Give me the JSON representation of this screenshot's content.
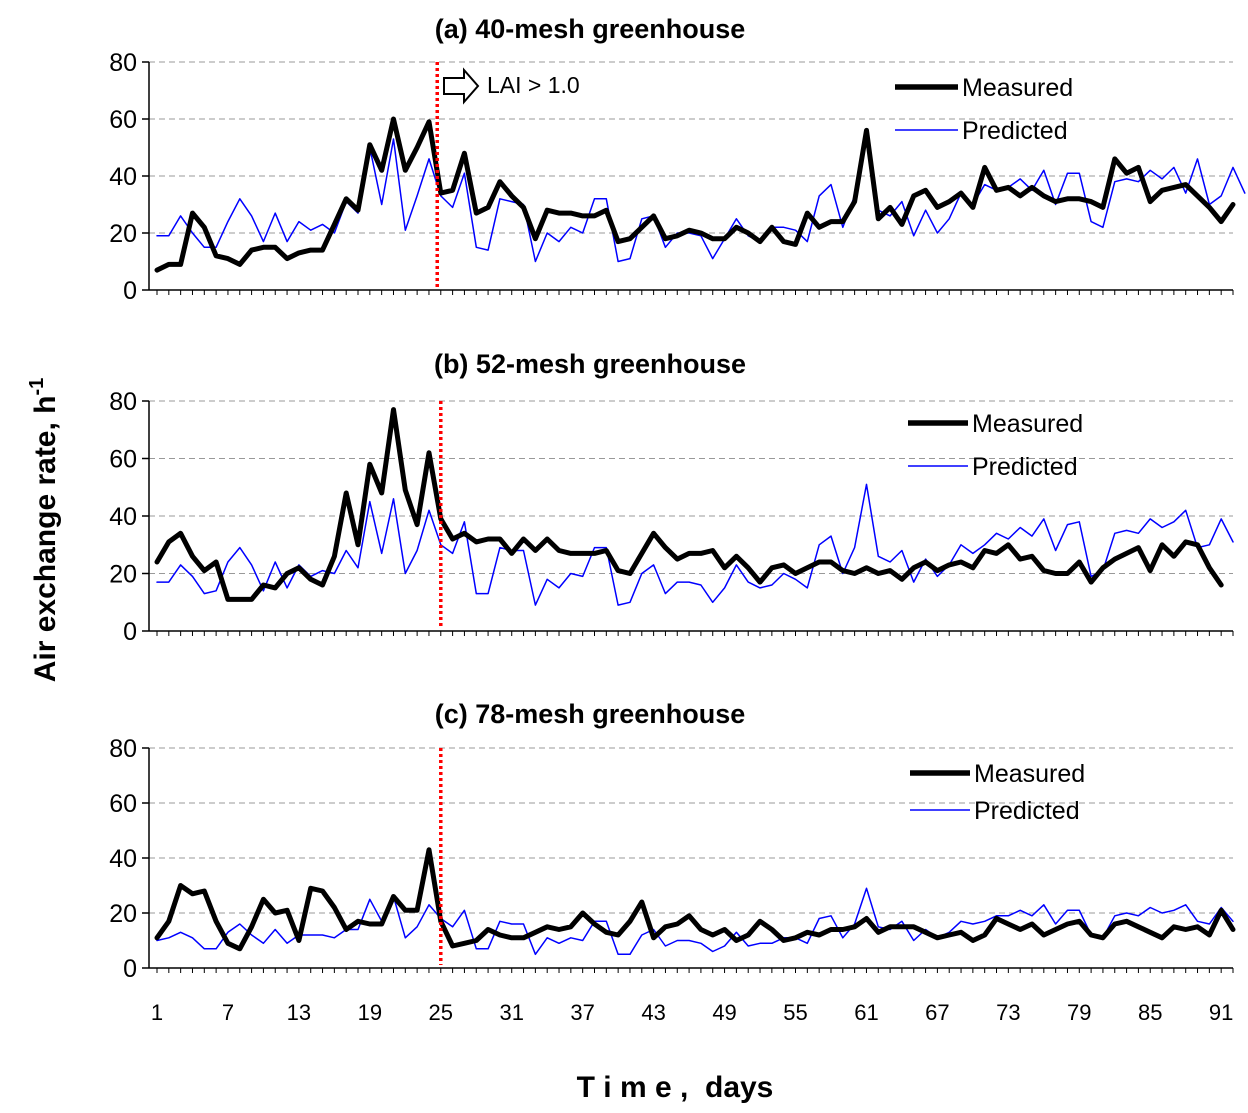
{
  "chart_data": {
    "type": "line",
    "ylabel": "Air exchange rate, h",
    "ylabel_sup": "-1",
    "xlabel": "T i m e ,  days",
    "x_tick_labels": [
      "1",
      "7",
      "13",
      "19",
      "25",
      "31",
      "37",
      "43",
      "49",
      "55",
      "61",
      "67",
      "73",
      "79",
      "85",
      "91"
    ],
    "x_ticks": [
      1,
      7,
      13,
      19,
      25,
      31,
      37,
      43,
      49,
      55,
      61,
      67,
      73,
      79,
      85,
      91
    ],
    "xlim": [
      1,
      92
    ],
    "colors": {
      "measured": "#000000",
      "predicted": "#0000ff",
      "marker": "#ff0000"
    },
    "panels": [
      {
        "title": "(a) 40-mesh greenhouse",
        "ylim": [
          0,
          80
        ],
        "y_tick_labels": [
          "0",
          "20",
          "40",
          "60",
          "80"
        ],
        "marker_x": 24.7,
        "annotation": "LAI > 1.0",
        "annotation_icon": "hollow-right-arrow-icon",
        "series": [
          {
            "name": "Measured",
            "values": [
              7,
              9,
              9,
              27,
              22,
              12,
              11,
              9,
              14,
              15,
              15,
              11,
              13,
              14,
              14,
              23,
              32,
              28,
              51,
              42,
              60,
              42,
              50,
              59,
              34,
              35,
              48,
              27,
              29,
              38,
              33,
              29,
              18,
              28,
              27,
              27,
              26,
              26,
              28,
              17,
              18,
              22,
              26,
              18,
              19,
              21,
              20,
              18,
              18,
              22,
              20,
              17,
              22,
              17,
              16,
              27,
              22,
              24,
              24,
              31,
              56,
              25,
              29,
              23,
              33,
              35,
              29,
              31,
              34,
              29,
              43,
              35,
              36,
              33,
              36,
              33,
              31,
              32,
              32,
              31,
              29,
              46,
              41,
              43,
              31,
              35,
              36,
              37,
              33,
              29,
              24,
              30
            ]
          },
          {
            "name": "Predicted",
            "values": [
              19,
              19,
              26,
              20,
              15,
              15,
              24,
              32,
              26,
              17,
              27,
              17,
              24,
              21,
              23,
              20,
              31,
              27,
              50,
              30,
              53,
              21,
              33,
              46,
              33,
              29,
              41,
              15,
              14,
              32,
              31,
              30,
              10,
              20,
              17,
              22,
              20,
              32,
              32,
              10,
              11,
              25,
              26,
              15,
              20,
              20,
              19,
              11,
              18,
              25,
              19,
              17,
              22,
              22,
              21,
              17,
              33,
              37,
              22,
              33,
              55,
              28,
              26,
              31,
              19,
              28,
              20,
              25,
              34,
              30,
              37,
              35,
              36,
              39,
              35,
              42,
              30,
              41,
              41,
              24,
              22,
              38,
              39,
              38,
              42,
              39,
              43,
              34,
              46,
              30,
              33,
              43,
              34
            ]
          }
        ]
      },
      {
        "title": "(b) 52-mesh greenhouse",
        "ylim": [
          0,
          80
        ],
        "y_tick_labels": [
          "0",
          "20",
          "40",
          "60",
          "80"
        ],
        "marker_x": 25,
        "series": [
          {
            "name": "Measured",
            "values": [
              24,
              31,
              34,
              26,
              21,
              24,
              11,
              11,
              11,
              16,
              15,
              20,
              22,
              18,
              16,
              26,
              48,
              30,
              58,
              48,
              77,
              49,
              37,
              62,
              39,
              32,
              34,
              31,
              32,
              32,
              27,
              32,
              28,
              32,
              28,
              27,
              27,
              27,
              28,
              21,
              20,
              27,
              34,
              29,
              25,
              27,
              27,
              28,
              22,
              26,
              22,
              17,
              22,
              23,
              20,
              22,
              24,
              24,
              21,
              20,
              22,
              20,
              21,
              18,
              22,
              24,
              21,
              23,
              24,
              22,
              28,
              27,
              30,
              25,
              26,
              21,
              20,
              20,
              24,
              17,
              22,
              25,
              27,
              29,
              21,
              30,
              26,
              31,
              30,
              22,
              16
            ]
          },
          {
            "name": "Predicted",
            "values": [
              17,
              17,
              23,
              19,
              13,
              14,
              24,
              29,
              23,
              14,
              24,
              15,
              23,
              19,
              21,
              20,
              28,
              22,
              45,
              27,
              46,
              20,
              28,
              42,
              30,
              27,
              38,
              13,
              13,
              29,
              28,
              28,
              9,
              18,
              15,
              20,
              19,
              29,
              29,
              9,
              10,
              20,
              23,
              13,
              17,
              17,
              16,
              10,
              15,
              23,
              17,
              15,
              16,
              20,
              18,
              15,
              30,
              33,
              20,
              29,
              51,
              26,
              24,
              28,
              17,
              25,
              19,
              23,
              30,
              27,
              30,
              34,
              32,
              36,
              33,
              39,
              28,
              37,
              38,
              19,
              21,
              34,
              35,
              34,
              39,
              36,
              38,
              42,
              29,
              30,
              39,
              31
            ]
          }
        ]
      },
      {
        "title": "(c) 78-mesh greenhouse",
        "ylim": [
          0,
          80
        ],
        "y_tick_labels": [
          "0",
          "20",
          "40",
          "60",
          "80"
        ],
        "marker_x": 25,
        "series": [
          {
            "name": "Measured",
            "values": [
              11,
              17,
              30,
              27,
              28,
              17,
              9,
              7,
              15,
              25,
              20,
              21,
              10,
              29,
              28,
              22,
              14,
              17,
              16,
              16,
              26,
              21,
              21,
              43,
              17,
              8,
              9,
              10,
              14,
              12,
              11,
              11,
              13,
              15,
              14,
              15,
              20,
              16,
              13,
              12,
              17,
              24,
              11,
              15,
              16,
              19,
              14,
              12,
              14,
              10,
              12,
              17,
              14,
              10,
              11,
              13,
              12,
              14,
              14,
              15,
              18,
              13,
              15,
              15,
              15,
              13,
              11,
              12,
              13,
              10,
              12,
              18,
              16,
              14,
              16,
              12,
              14,
              16,
              17,
              12,
              11,
              16,
              17,
              15,
              13,
              11,
              15,
              14,
              15,
              12,
              21,
              14
            ]
          },
          {
            "name": "Predicted",
            "values": [
              10,
              11,
              13,
              11,
              7,
              7,
              13,
              16,
              12,
              9,
              14,
              9,
              12,
              12,
              12,
              11,
              14,
              14,
              25,
              17,
              26,
              11,
              15,
              23,
              18,
              15,
              21,
              7,
              7,
              17,
              16,
              16,
              5,
              11,
              9,
              11,
              10,
              17,
              17,
              5,
              5,
              12,
              14,
              8,
              10,
              10,
              9,
              6,
              8,
              13,
              8,
              9,
              9,
              11,
              11,
              9,
              18,
              19,
              11,
              16,
              29,
              15,
              14,
              17,
              10,
              14,
              11,
              13,
              17,
              16,
              17,
              19,
              19,
              21,
              19,
              23,
              16,
              21,
              21,
              12,
              11,
              19,
              20,
              19,
              22,
              20,
              21,
              23,
              17,
              16,
              22,
              17
            ]
          }
        ]
      }
    ]
  }
}
